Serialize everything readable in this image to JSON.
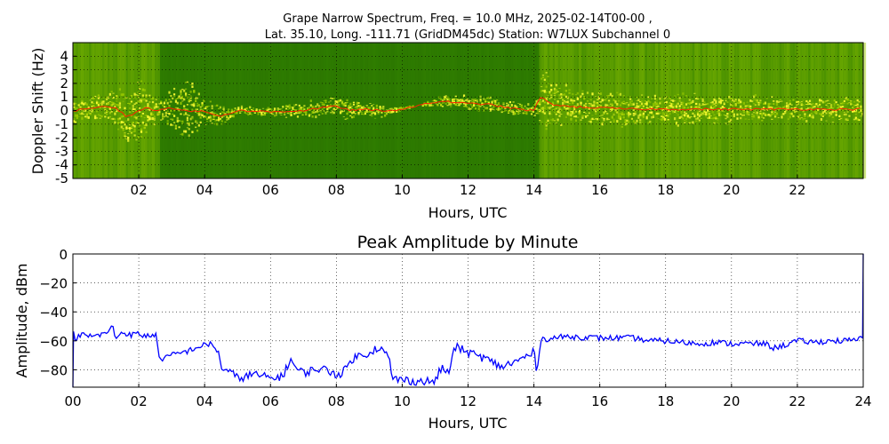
{
  "figure": {
    "title_line1": "Grape Narrow Spectrum, Freq. = 10.0 MHz, 2025-02-14T00-00 ,",
    "title_line2": "Lat.  35.10, Long. -111.71 (GridDM45dc) Station: W7LUX Subchannel 0"
  },
  "colors": {
    "spectrogram_bg": "#2f7d00",
    "spectrogram_dark": "#1f5f00",
    "spectrogram_band": "#9ccc00",
    "spectrogram_bright": "#ffff33",
    "peak_trace": "#ff2200",
    "amplitude_line": "#0000ff",
    "grid": "#000000"
  },
  "chart_data": [
    {
      "type": "heatmap",
      "title": "",
      "xlabel": "Hours, UTC",
      "ylabel": "Doppler Shift (Hz)",
      "xlim": [
        0,
        24
      ],
      "ylim": [
        -5,
        5
      ],
      "xticks": [
        "02",
        "04",
        "06",
        "08",
        "10",
        "12",
        "14",
        "16",
        "18",
        "20",
        "22"
      ],
      "yticks": [
        "4",
        "3",
        "2",
        "1",
        "0",
        "-1",
        "-2",
        "-3",
        "-4",
        "-5"
      ],
      "grid": true,
      "doppler_peak": {
        "x": [
          0.0,
          0.5,
          1.0,
          1.3,
          1.6,
          1.8,
          2.0,
          2.2,
          2.5,
          3.0,
          3.5,
          4.0,
          4.5,
          5.0,
          6.0,
          7.0,
          7.5,
          8.0,
          8.5,
          9.0,
          9.5,
          11.2,
          12.0,
          12.5,
          13.0,
          13.5,
          14.0,
          14.2,
          14.5,
          15.0,
          16.0,
          17.0,
          18.0,
          19.0,
          20.0,
          21.0,
          22.0,
          23.0,
          24.0
        ],
        "y": [
          0.0,
          0.1,
          0.3,
          0.2,
          -0.4,
          -0.3,
          0.0,
          0.2,
          0.0,
          0.2,
          0.0,
          -0.1,
          -0.4,
          0.0,
          -0.1,
          0.0,
          0.2,
          0.3,
          0.0,
          0.1,
          -0.1,
          0.7,
          0.5,
          0.5,
          0.3,
          0.1,
          0.0,
          1.0,
          0.5,
          0.3,
          0.2,
          0.1,
          0.1,
          0.1,
          0.1,
          0.1,
          0.1,
          0.1,
          0.1
        ]
      },
      "signal_envelope": {
        "x": [
          0.0,
          1.0,
          2.0,
          2.6,
          3.0,
          3.5,
          4.0,
          4.5,
          5.0,
          6.0,
          7.0,
          8.0,
          9.0,
          9.6,
          10.5,
          11.2,
          12.0,
          13.0,
          14.0,
          14.2,
          15.0,
          16.0,
          17.0,
          18.0,
          19.0,
          20.0,
          21.0,
          22.0,
          23.0,
          24.0
        ],
        "half_width": [
          1.0,
          1.2,
          2.5,
          1.0,
          1.5,
          2.5,
          1.2,
          0.8,
          0.3,
          0.4,
          0.6,
          0.9,
          0.8,
          0.3,
          0.0,
          0.5,
          0.6,
          0.6,
          0.5,
          2.5,
          1.5,
          1.3,
          1.4,
          1.2,
          1.3,
          1.1,
          1.0,
          1.0,
          1.0,
          1.0
        ]
      }
    },
    {
      "type": "line",
      "title": "Peak Amplitude by Minute",
      "xlabel": "Hours, UTC",
      "ylabel": "Amplitude, dBm",
      "xlim": [
        0,
        24
      ],
      "ylim": [
        -92,
        0
      ],
      "xticks": [
        "00",
        "02",
        "04",
        "06",
        "08",
        "10",
        "12",
        "14",
        "16",
        "18",
        "20",
        "22",
        "24"
      ],
      "yticks": [
        "0",
        "−20",
        "−40",
        "−60",
        "−80"
      ],
      "grid": true,
      "series": [
        {
          "x": [
            0.0,
            0.02,
            0.05,
            0.3,
            0.6,
            1.0,
            1.2,
            1.3,
            1.5,
            1.8,
            2.0,
            2.2,
            2.4,
            2.55,
            2.6,
            3.0,
            3.5,
            3.7,
            4.0,
            4.2,
            4.4,
            4.5,
            4.8,
            5.0,
            5.5,
            6.0,
            6.4,
            6.6,
            6.8,
            7.0,
            7.5,
            7.8,
            8.0,
            8.2,
            8.5,
            9.0,
            9.3,
            9.6,
            9.7,
            10.0,
            10.5,
            11.0,
            11.2,
            11.4,
            11.6,
            12.0,
            12.5,
            13.0,
            13.5,
            14.0,
            14.1,
            14.2,
            14.3,
            14.6,
            15.0,
            16.0,
            17.0,
            17.5,
            18.0,
            18.5,
            19.0,
            19.5,
            20.0,
            20.5,
            21.0,
            21.3,
            21.6,
            22.0,
            22.5,
            23.0,
            23.5,
            23.9,
            23.95,
            23.98,
            24.0
          ],
          "y": [
            -92,
            -55,
            -58,
            -56,
            -57,
            -55,
            -50,
            -58,
            -54,
            -56,
            -55,
            -57,
            -56,
            -55,
            -73,
            -70,
            -67,
            -65,
            -63,
            -62,
            -67,
            -78,
            -82,
            -86,
            -83,
            -86,
            -84,
            -72,
            -80,
            -82,
            -79,
            -81,
            -83,
            -82,
            -72,
            -68,
            -64,
            -72,
            -86,
            -87,
            -88,
            -88,
            -78,
            -83,
            -64,
            -68,
            -72,
            -78,
            -74,
            -68,
            -82,
            -58,
            -59,
            -58,
            -57,
            -58,
            -58,
            -60,
            -60,
            -61,
            -62,
            -61,
            -62,
            -62,
            -62,
            -65,
            -63,
            -60,
            -61,
            -60,
            -60,
            -59,
            -58,
            -58,
            0
          ]
        }
      ]
    }
  ]
}
